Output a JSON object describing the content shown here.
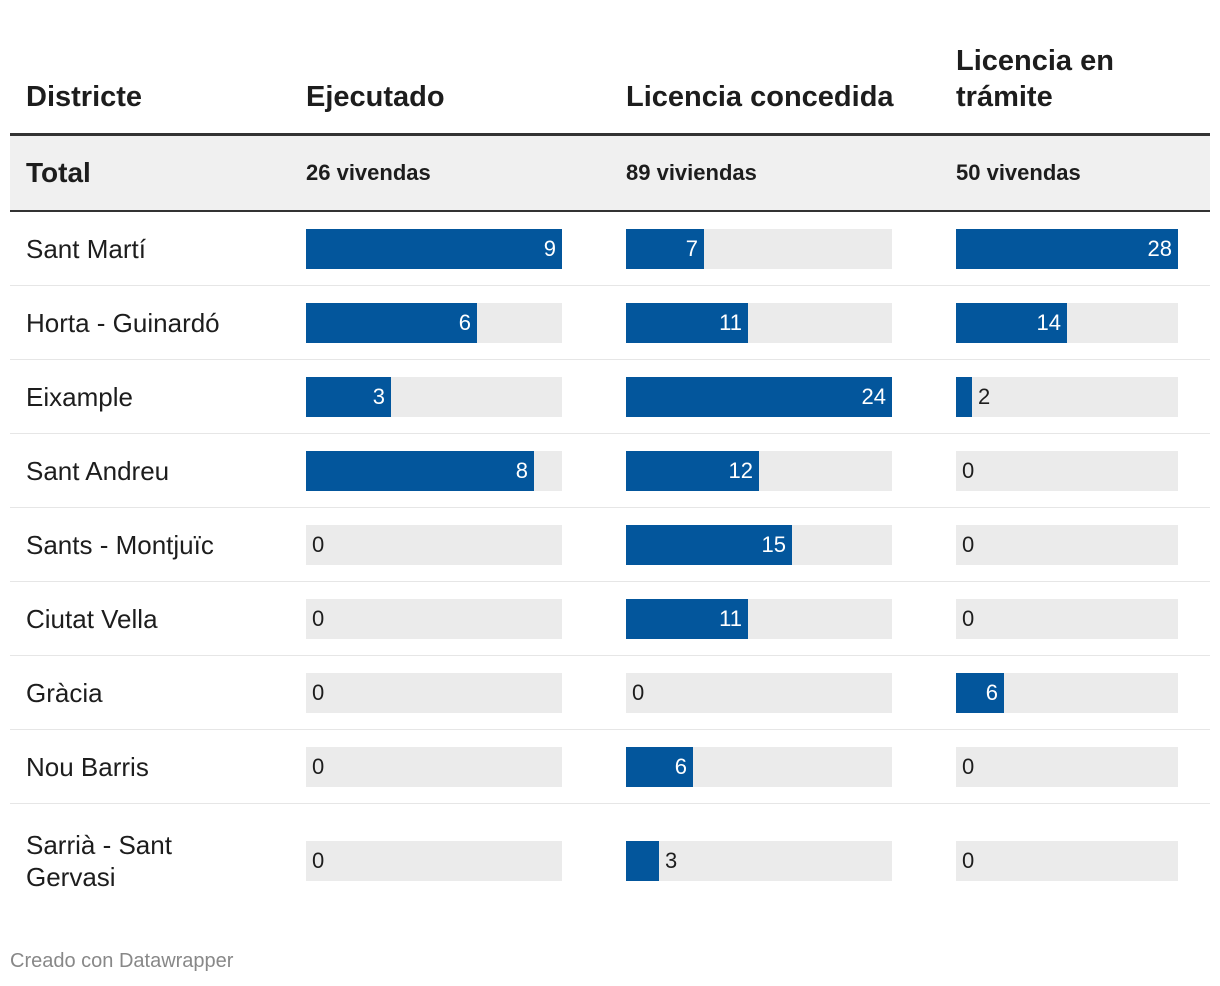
{
  "chart_data": {
    "type": "table",
    "headers": {
      "district": "Districte",
      "ejecutado": "Ejecutado",
      "concedida": "Licencia concedida",
      "tramite": "Licencia en trámite"
    },
    "total": {
      "label": "Total",
      "ejecutado": "26 vivendas",
      "concedida": "89 viviendas",
      "tramite": "50 vivendas"
    },
    "series_max": {
      "ejecutado": 9,
      "concedida": 24,
      "tramite": 28
    },
    "rows": [
      {
        "district": "Sant Martí",
        "ejecutado": 9,
        "concedida": 7,
        "tramite": 28
      },
      {
        "district": "Horta - Guinardó",
        "ejecutado": 6,
        "concedida": 11,
        "tramite": 14
      },
      {
        "district": "Eixample",
        "ejecutado": 3,
        "concedida": 24,
        "tramite": 2
      },
      {
        "district": "Sant Andreu",
        "ejecutado": 8,
        "concedida": 12,
        "tramite": 0
      },
      {
        "district": "Sants - Montjuïc",
        "ejecutado": 0,
        "concedida": 15,
        "tramite": 0
      },
      {
        "district": "Ciutat Vella",
        "ejecutado": 0,
        "concedida": 11,
        "tramite": 0
      },
      {
        "district": "Gràcia",
        "ejecutado": 0,
        "concedida": 0,
        "tramite": 6
      },
      {
        "district": "Nou Barris",
        "ejecutado": 0,
        "concedida": 6,
        "tramite": 0
      },
      {
        "district": "Sarrià - Sant Gervasi",
        "ejecutado": 0,
        "concedida": 3,
        "tramite": 0
      }
    ],
    "bar_color": "#03569c",
    "track_color": "#ebebeb"
  },
  "footer": {
    "credit": "Creado con Datawrapper"
  }
}
